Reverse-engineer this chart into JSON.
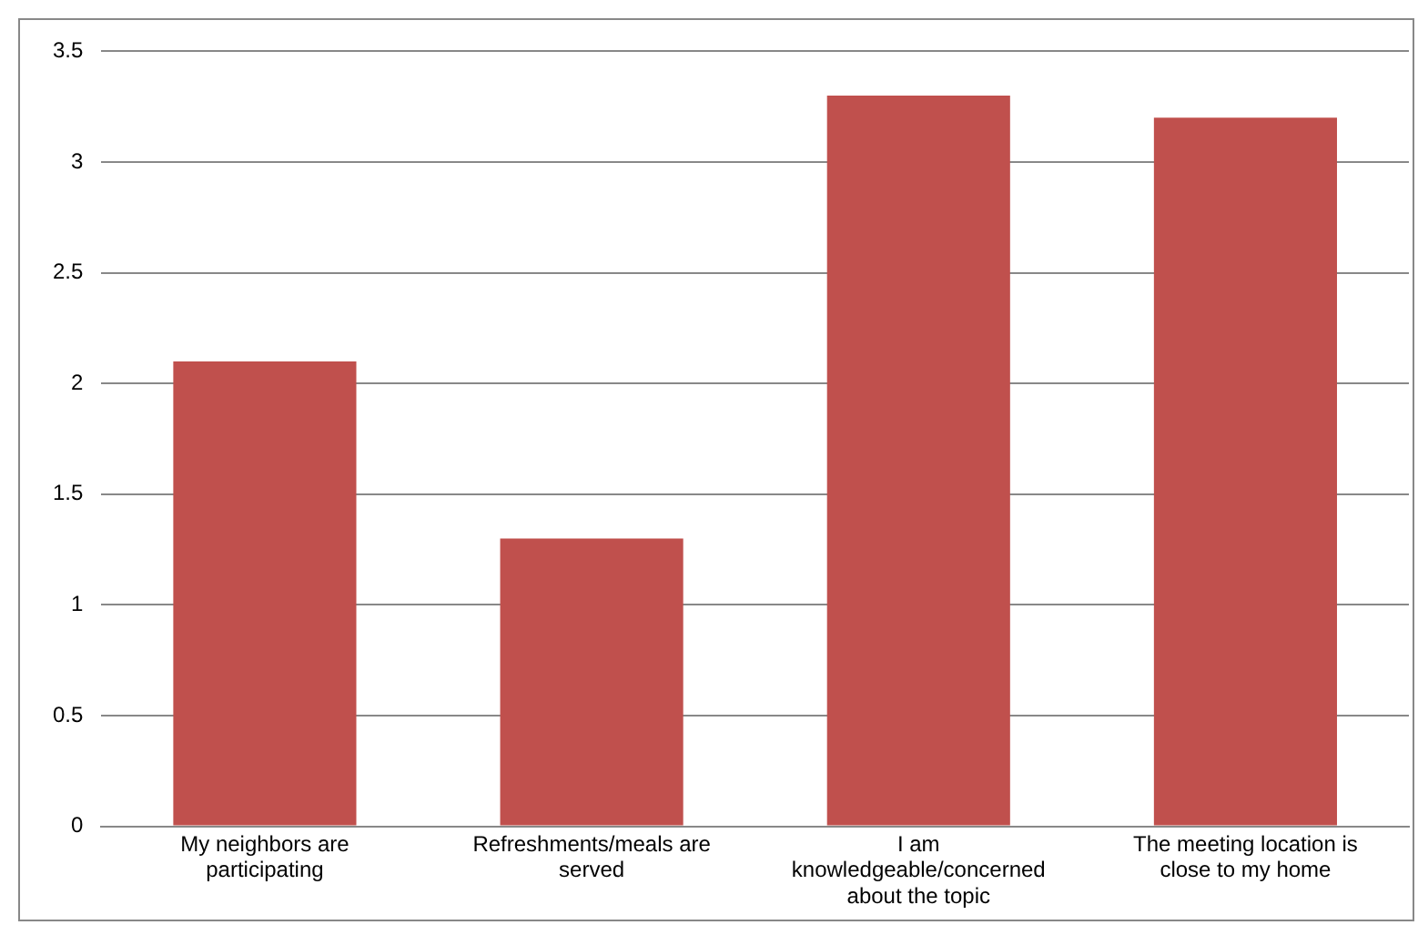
{
  "chart_data": {
    "type": "bar",
    "categories": [
      "My neighbors are participating",
      "Refreshments/meals are served",
      "I am knowledgeable/concerned about the topic",
      "The meeting location is close to my home"
    ],
    "values": [
      2.1,
      1.3,
      3.3,
      3.2
    ],
    "color": "#c0504d",
    "ylim": [
      0,
      3.5
    ],
    "yticks": [
      0,
      0.5,
      1,
      1.5,
      2,
      2.5,
      3,
      3.5
    ],
    "grid": "y",
    "legend": false
  }
}
